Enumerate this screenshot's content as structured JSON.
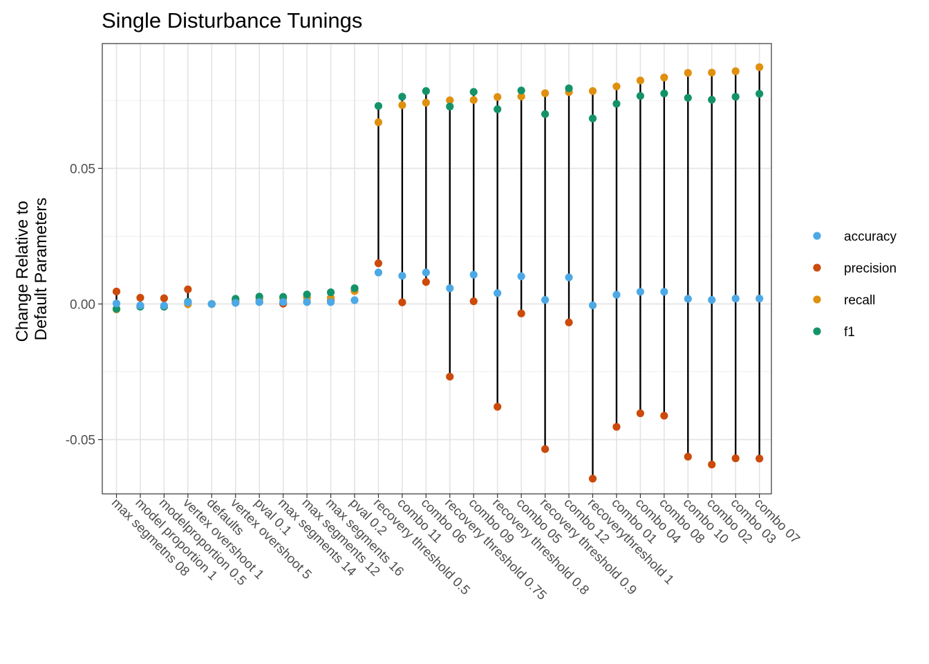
{
  "chart_data": {
    "type": "scatter",
    "title": "Single Disturbance Tunings",
    "xlabel": "",
    "ylabel_lines": [
      "Change Relative to",
      "Default Parameters"
    ],
    "ylim": [
      -0.07,
      0.096
    ],
    "yticks": [
      -0.05,
      0.0,
      0.05
    ],
    "ytick_labels": [
      "-0.05",
      "0.00",
      "0.05"
    ],
    "grid": true,
    "legend_position": "right",
    "categories": [
      "max segmetns 08",
      "model proportion 1",
      "modelproportion 0.5",
      "vertex overshoot 1",
      "defaults",
      "vertex overshoot 5",
      "pval 0.1",
      "max segments 14",
      "max segments 12",
      "max segments 16",
      "pval 0.2",
      "recovery threshold 0.5",
      "combo 11",
      "combo 06",
      "recovery threshold 0.75",
      "combo 09",
      "recovery threshold 0.8",
      "combo 05",
      "recovery threshold 0.9",
      "combo 12",
      "recoverythreshold 1",
      "combo 01",
      "combo 04",
      "combo 08",
      "combo 10",
      "combo 02",
      "combo 03",
      "combo 07"
    ],
    "series": [
      {
        "name": "accuracy",
        "color": "#4DA9E6",
        "values": [
          0.0002,
          -0.0005,
          -0.0006,
          0.0006,
          0.0,
          0.0004,
          0.0007,
          0.0007,
          0.0007,
          0.0007,
          0.0014,
          0.0116,
          0.0104,
          0.0116,
          0.0058,
          0.0108,
          0.004,
          0.0102,
          0.0015,
          0.0098,
          -0.0005,
          0.0034,
          0.0045,
          0.0045,
          0.0019,
          0.0015,
          0.002,
          0.002
        ]
      },
      {
        "name": "precision",
        "color": "#CC4A0A",
        "values": [
          0.0046,
          0.0023,
          0.0021,
          0.0054,
          0.0,
          0.0008,
          0.0008,
          0.0001,
          0.0008,
          0.0012,
          0.0048,
          0.015,
          0.0006,
          0.0081,
          -0.0268,
          0.001,
          -0.0379,
          -0.0035,
          -0.0535,
          -0.0068,
          -0.0644,
          -0.0453,
          -0.0403,
          -0.0412,
          -0.0563,
          -0.0592,
          -0.0569,
          -0.057
        ]
      },
      {
        "name": "recall",
        "color": "#E0900F",
        "values": [
          -0.002,
          -0.0008,
          -0.001,
          -0.0001,
          0.0,
          0.0013,
          0.0019,
          0.0021,
          0.0024,
          0.0023,
          0.0048,
          0.067,
          0.0733,
          0.0742,
          0.0751,
          0.0752,
          0.0763,
          0.0765,
          0.0777,
          0.0781,
          0.0785,
          0.0802,
          0.0824,
          0.0835,
          0.0852,
          0.0853,
          0.0858,
          0.0873
        ]
      },
      {
        "name": "f1",
        "color": "#14936A",
        "values": [
          -0.0018,
          -0.001,
          -0.001,
          0.0008,
          0.0,
          0.0019,
          0.0027,
          0.0026,
          0.0035,
          0.0043,
          0.0058,
          0.073,
          0.0764,
          0.0785,
          0.0728,
          0.0782,
          0.0718,
          0.0787,
          0.07,
          0.0795,
          0.0684,
          0.0738,
          0.0767,
          0.0776,
          0.076,
          0.0753,
          0.0764,
          0.0775
        ]
      }
    ]
  }
}
